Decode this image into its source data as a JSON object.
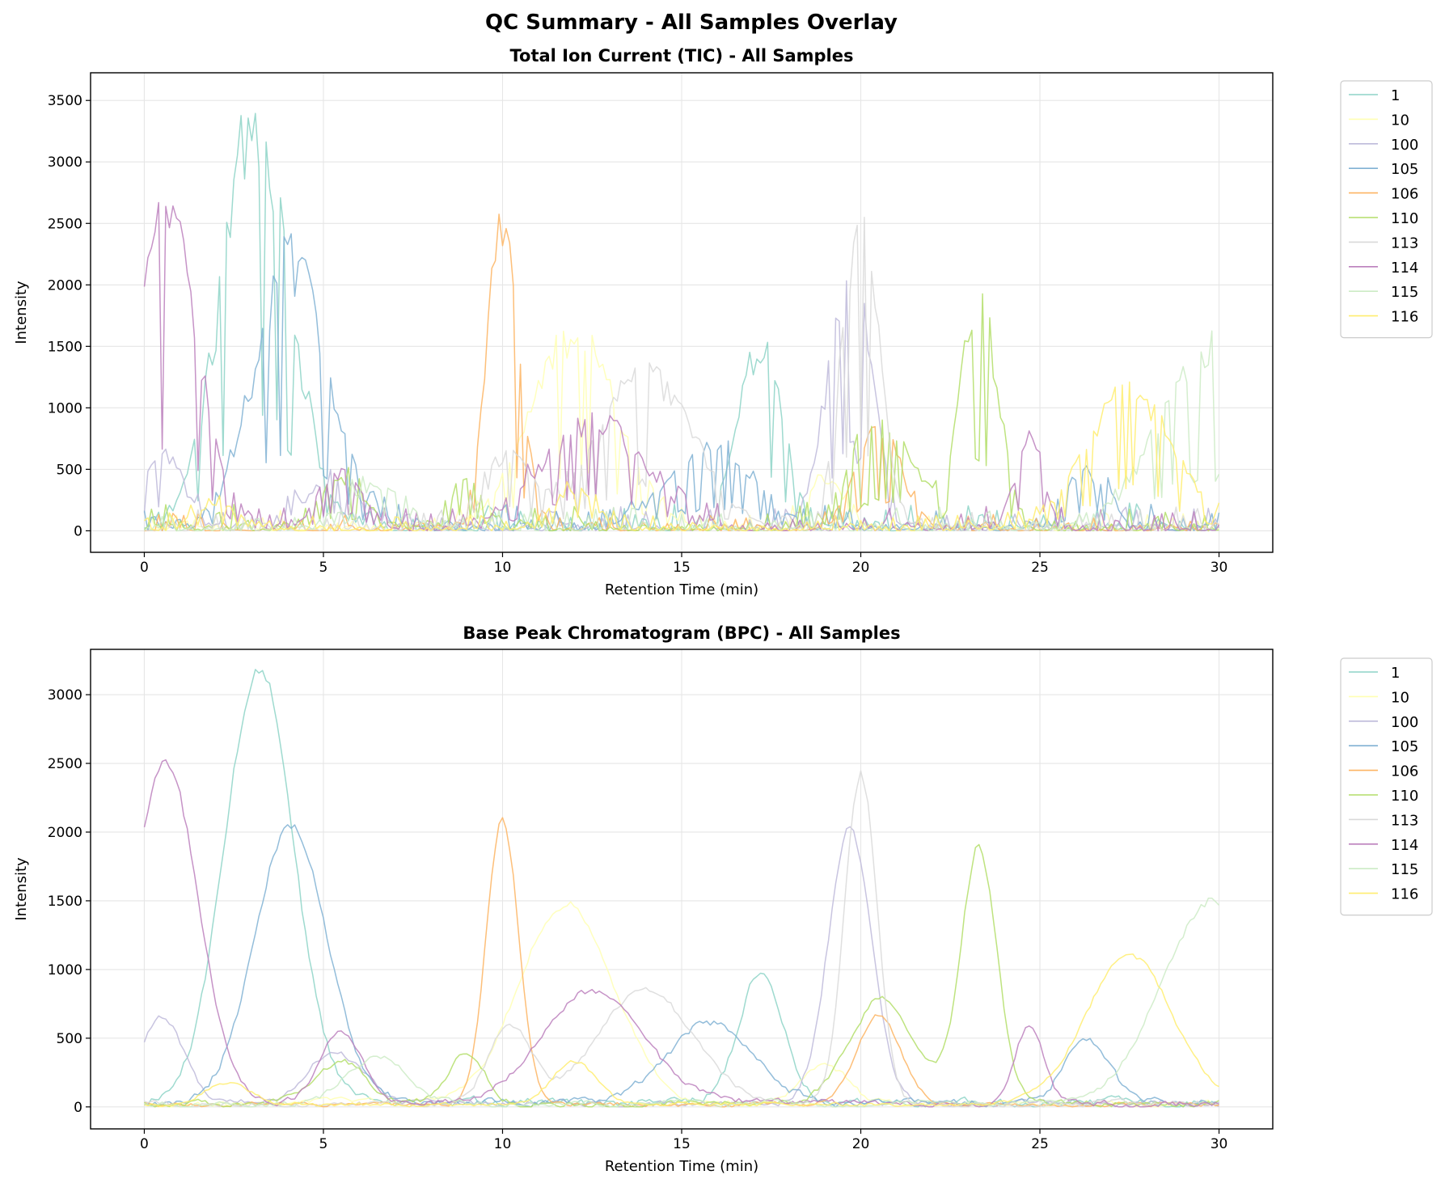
{
  "figure": {
    "title": "QC Summary - All Samples Overlay"
  },
  "samples": [
    {
      "name": "1",
      "color": "#8dd3c7"
    },
    {
      "name": "10",
      "color": "#ffffb3"
    },
    {
      "name": "100",
      "color": "#bebada"
    },
    {
      "name": "105",
      "color": "#80b1d3"
    },
    {
      "name": "106",
      "color": "#fdb462"
    },
    {
      "name": "110",
      "color": "#b3de69"
    },
    {
      "name": "113",
      "color": "#d9d9d9"
    },
    {
      "name": "114",
      "color": "#bc80bd"
    },
    {
      "name": "115",
      "color": "#ccebc5"
    },
    {
      "name": "116",
      "color": "#ffed6f"
    }
  ],
  "chart_data": [
    {
      "type": "line",
      "title": "Total Ion Current (TIC) - All Samples",
      "xlabel": "Retention Time (min)",
      "ylabel": "Intensity",
      "xlim": [
        -1.5,
        31.5
      ],
      "ylim": [
        -175,
        3725
      ],
      "xticks": [
        0,
        5,
        10,
        15,
        20,
        25,
        30
      ],
      "yticks": [
        0,
        500,
        1000,
        1500,
        2000,
        2500,
        3000,
        3500
      ],
      "grid": true,
      "legend_position": "outside-right",
      "noise": "high",
      "series": [
        {
          "name": "1",
          "peaks": [
            {
              "center": 3.1,
              "width": 0.95,
              "height": 3250
            },
            {
              "center": 17.2,
              "width": 0.6,
              "height": 1500
            }
          ],
          "baseline": 120
        },
        {
          "name": "10",
          "peaks": [
            {
              "center": 12.0,
              "width": 1.2,
              "height": 1550
            },
            {
              "center": 19.0,
              "width": 0.6,
              "height": 400
            }
          ],
          "baseline": 90
        },
        {
          "name": "100",
          "peaks": [
            {
              "center": 0.5,
              "width": 0.6,
              "height": 600
            },
            {
              "center": 19.7,
              "width": 0.6,
              "height": 2150
            },
            {
              "center": 5.3,
              "width": 0.8,
              "height": 400
            }
          ],
          "baseline": 100
        },
        {
          "name": "105",
          "peaks": [
            {
              "center": 4.1,
              "width": 1.0,
              "height": 2150
            },
            {
              "center": 15.8,
              "width": 1.2,
              "height": 600
            },
            {
              "center": 26.3,
              "width": 0.6,
              "height": 450
            }
          ],
          "baseline": 110
        },
        {
          "name": "106",
          "peaks": [
            {
              "center": 10.0,
              "width": 0.45,
              "height": 2350
            },
            {
              "center": 20.5,
              "width": 0.6,
              "height": 800
            }
          ],
          "baseline": 80
        },
        {
          "name": "110",
          "peaks": [
            {
              "center": 23.3,
              "width": 0.5,
              "height": 1900
            },
            {
              "center": 20.6,
              "width": 0.9,
              "height": 800
            },
            {
              "center": 5.5,
              "width": 0.7,
              "height": 350
            },
            {
              "center": 9.0,
              "width": 0.5,
              "height": 350
            }
          ],
          "baseline": 110
        },
        {
          "name": "113",
          "peaks": [
            {
              "center": 20.0,
              "width": 0.5,
              "height": 2450
            },
            {
              "center": 14.0,
              "width": 1.3,
              "height": 1250
            },
            {
              "center": 10.2,
              "width": 0.6,
              "height": 600
            }
          ],
          "baseline": 100
        },
        {
          "name": "114",
          "peaks": [
            {
              "center": 0.6,
              "width": 0.9,
              "height": 2450
            },
            {
              "center": 12.5,
              "width": 1.4,
              "height": 850
            },
            {
              "center": 5.5,
              "width": 0.6,
              "height": 450
            },
            {
              "center": 24.7,
              "width": 0.4,
              "height": 650
            }
          ],
          "baseline": 100
        },
        {
          "name": "115",
          "peaks": [
            {
              "center": 29.8,
              "width": 1.4,
              "height": 1500
            },
            {
              "center": 6.5,
              "width": 0.8,
              "height": 350
            }
          ],
          "baseline": 100
        },
        {
          "name": "116",
          "peaks": [
            {
              "center": 27.5,
              "width": 1.2,
              "height": 1100
            },
            {
              "center": 12.0,
              "width": 0.6,
              "height": 300
            },
            {
              "center": 2.0,
              "width": 0.6,
              "height": 200
            }
          ],
          "baseline": 70
        }
      ]
    },
    {
      "type": "line",
      "title": "Base Peak Chromatogram (BPC) - All Samples",
      "xlabel": "Retention Time (min)",
      "ylabel": "Intensity",
      "xlim": [
        -1.5,
        31.5
      ],
      "ylim": [
        -160,
        3330
      ],
      "xticks": [
        0,
        5,
        10,
        15,
        20,
        25,
        30
      ],
      "yticks": [
        0,
        500,
        1000,
        1500,
        2000,
        2500,
        3000
      ],
      "grid": true,
      "legend_position": "outside-right",
      "noise": "low",
      "series": [
        {
          "name": "1",
          "peaks": [
            {
              "center": 3.2,
              "width": 0.95,
              "height": 3150
            },
            {
              "center": 17.2,
              "width": 0.6,
              "height": 950
            }
          ],
          "baseline": 40
        },
        {
          "name": "10",
          "peaks": [
            {
              "center": 11.8,
              "width": 1.3,
              "height": 1450
            },
            {
              "center": 19.0,
              "width": 0.6,
              "height": 300
            }
          ],
          "baseline": 30
        },
        {
          "name": "100",
          "peaks": [
            {
              "center": 0.5,
              "width": 0.6,
              "height": 620
            },
            {
              "center": 19.7,
              "width": 0.6,
              "height": 2000
            },
            {
              "center": 5.3,
              "width": 0.8,
              "height": 380
            }
          ],
          "baseline": 30
        },
        {
          "name": "105",
          "peaks": [
            {
              "center": 4.1,
              "width": 1.0,
              "height": 2030
            },
            {
              "center": 15.8,
              "width": 1.2,
              "height": 580
            },
            {
              "center": 26.3,
              "width": 0.6,
              "height": 480
            }
          ],
          "baseline": 40
        },
        {
          "name": "106",
          "peaks": [
            {
              "center": 10.0,
              "width": 0.45,
              "height": 2080
            },
            {
              "center": 20.5,
              "width": 0.6,
              "height": 650
            }
          ],
          "baseline": 20
        },
        {
          "name": "110",
          "peaks": [
            {
              "center": 23.3,
              "width": 0.5,
              "height": 1850
            },
            {
              "center": 20.6,
              "width": 0.9,
              "height": 750
            },
            {
              "center": 5.5,
              "width": 0.7,
              "height": 300
            },
            {
              "center": 9.0,
              "width": 0.5,
              "height": 380
            }
          ],
          "baseline": 30
        },
        {
          "name": "113",
          "peaks": [
            {
              "center": 20.0,
              "width": 0.45,
              "height": 2400
            },
            {
              "center": 14.0,
              "width": 1.3,
              "height": 830
            },
            {
              "center": 10.2,
              "width": 0.6,
              "height": 550
            }
          ],
          "baseline": 30
        },
        {
          "name": "114",
          "peaks": [
            {
              "center": 0.6,
              "width": 0.9,
              "height": 2480
            },
            {
              "center": 12.5,
              "width": 1.4,
              "height": 820
            },
            {
              "center": 5.5,
              "width": 0.6,
              "height": 520
            },
            {
              "center": 24.7,
              "width": 0.4,
              "height": 560
            }
          ],
          "baseline": 30
        },
        {
          "name": "115",
          "peaks": [
            {
              "center": 29.8,
              "width": 1.4,
              "height": 1480
            },
            {
              "center": 6.5,
              "width": 0.8,
              "height": 350
            }
          ],
          "baseline": 30
        },
        {
          "name": "116",
          "peaks": [
            {
              "center": 27.5,
              "width": 1.2,
              "height": 1100
            },
            {
              "center": 12.0,
              "width": 0.6,
              "height": 320
            },
            {
              "center": 2.3,
              "width": 0.6,
              "height": 170
            }
          ],
          "baseline": 20
        }
      ]
    }
  ]
}
